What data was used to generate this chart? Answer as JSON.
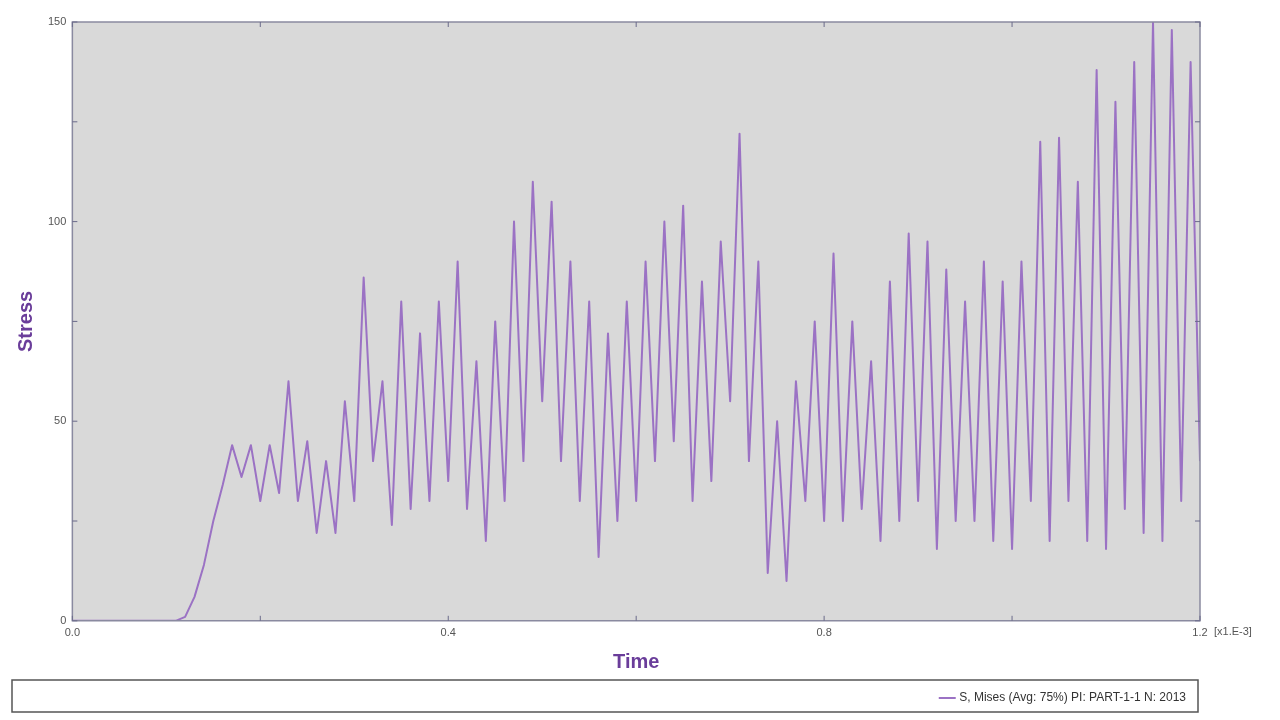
{
  "chart_data": {
    "type": "line",
    "xlabel": "Time",
    "ylabel": "Stress",
    "x": [
      0,
      0.11,
      0.12,
      0.13,
      0.14,
      0.15,
      0.16,
      0.17,
      0.18,
      0.19,
      0.2,
      0.21,
      0.22,
      0.23,
      0.24,
      0.25,
      0.26,
      0.27,
      0.28,
      0.29,
      0.3,
      0.31,
      0.32,
      0.33,
      0.34,
      0.35,
      0.36,
      0.37,
      0.38,
      0.39,
      0.4,
      0.41,
      0.42,
      0.43,
      0.44,
      0.45,
      0.46,
      0.47,
      0.48,
      0.49,
      0.5,
      0.51,
      0.52,
      0.53,
      0.54,
      0.55,
      0.56,
      0.57,
      0.58,
      0.59,
      0.6,
      0.61,
      0.62,
      0.63,
      0.64,
      0.65,
      0.66,
      0.67,
      0.68,
      0.69,
      0.7,
      0.71,
      0.72,
      0.73,
      0.74,
      0.75,
      0.76,
      0.77,
      0.78,
      0.79,
      0.8,
      0.81,
      0.82,
      0.83,
      0.84,
      0.85,
      0.86,
      0.87,
      0.88,
      0.89,
      0.9,
      0.91,
      0.92,
      0.93,
      0.94,
      0.95,
      0.96,
      0.97,
      0.98,
      0.99,
      1.0,
      1.01,
      1.02,
      1.03,
      1.04,
      1.05,
      1.06,
      1.07,
      1.08,
      1.09,
      1.1,
      1.11,
      1.12,
      1.13,
      1.14,
      1.15,
      1.16,
      1.17,
      1.18,
      1.19,
      1.2
    ],
    "series": [
      {
        "name": "S, Mises (Avg: 75%) PI: PART-1-1 N: 2013",
        "color": "#9b72c4",
        "values": [
          0,
          0,
          1,
          6,
          14,
          25,
          34,
          44,
          36,
          44,
          30,
          44,
          32,
          60,
          30,
          45,
          22,
          40,
          22,
          55,
          30,
          86,
          40,
          60,
          24,
          80,
          28,
          72,
          30,
          80,
          35,
          90,
          28,
          65,
          20,
          75,
          30,
          100,
          40,
          110,
          55,
          105,
          40,
          90,
          30,
          80,
          16,
          72,
          25,
          80,
          30,
          90,
          40,
          100,
          45,
          104,
          30,
          85,
          35,
          95,
          55,
          122,
          40,
          90,
          12,
          50,
          10,
          60,
          30,
          75,
          25,
          92,
          25,
          75,
          28,
          65,
          20,
          85,
          25,
          97,
          30,
          95,
          18,
          88,
          25,
          80,
          25,
          90,
          20,
          85,
          18,
          90,
          30,
          120,
          20,
          121,
          30,
          110,
          20,
          138,
          18,
          130,
          28,
          140,
          22,
          150,
          20,
          148,
          30,
          140,
          40
        ]
      }
    ],
    "xlim": [
      0,
      1.2
    ],
    "xticks": [
      {
        "value": 0,
        "label": "0.0"
      },
      {
        "value": 0.2,
        "label": null
      },
      {
        "value": 0.4,
        "label": "0.4"
      },
      {
        "value": 0.6,
        "label": null
      },
      {
        "value": 0.8,
        "label": "0.8"
      },
      {
        "value": 1.0,
        "label": null
      },
      {
        "value": 1.2,
        "label": "1.2"
      }
    ],
    "ylim": [
      0,
      150
    ],
    "yticks": [
      0,
      {
        "value": 25,
        "label": null
      },
      50,
      {
        "value": 75,
        "label": null
      },
      100,
      {
        "value": 125,
        "label": null
      },
      150
    ],
    "annotations": [
      "[x1.E-3]"
    ],
    "grid": false,
    "legend": "bottom right",
    "marker": "none",
    "line_style": "solid"
  }
}
